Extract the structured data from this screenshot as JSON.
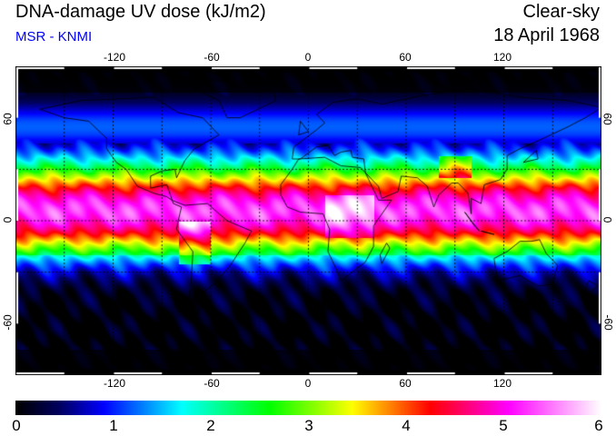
{
  "header": {
    "title": "DNA-damage UV dose (kJ/m2)",
    "source": "MSR - KNMI",
    "condition": "Clear-sky",
    "date": "18 April 1968"
  },
  "axes": {
    "lon_ticks": [
      "-120",
      "-60",
      "0",
      "60",
      "120"
    ],
    "lat_ticks": [
      "60",
      "0",
      "-60"
    ]
  },
  "colorbar": {
    "labels": [
      "0",
      "1",
      "2",
      "3",
      "4",
      "5",
      "6"
    ],
    "range": [
      0,
      6
    ],
    "stops": [
      [
        0,
        "#000000"
      ],
      [
        0.45,
        "#000060"
      ],
      [
        0.9,
        "#0000ff"
      ],
      [
        1.7,
        "#00ffff"
      ],
      [
        2.6,
        "#00ff00"
      ],
      [
        3.45,
        "#ffff00"
      ],
      [
        4.25,
        "#ff0000"
      ],
      [
        5.05,
        "#ff00ff"
      ],
      [
        6,
        "#ffffff"
      ]
    ]
  }
}
